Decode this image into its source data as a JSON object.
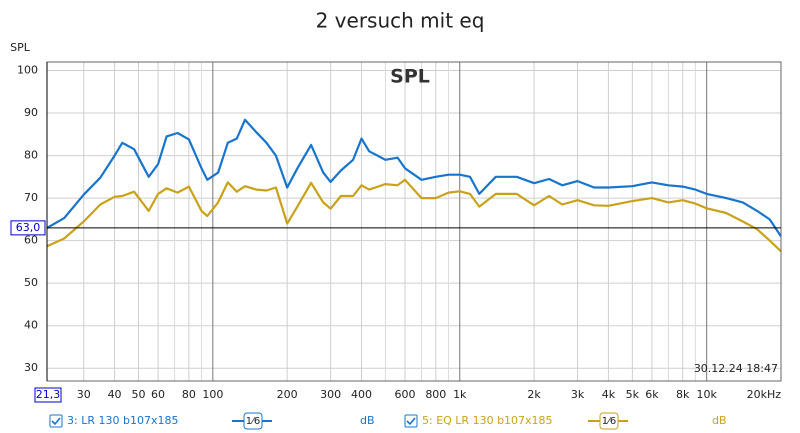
{
  "chart_data": {
    "type": "line",
    "title": "2 versuch mit eq",
    "y_label": "SPL",
    "plot_label": "SPL",
    "timestamp": "30.12.24 18:47",
    "log_x": true,
    "grid": true,
    "xlim": [
      21.3,
      20000
    ],
    "ylim": [
      27,
      102
    ],
    "yticks": [
      30,
      40,
      50,
      60,
      70,
      80,
      90,
      100
    ],
    "xticks": [
      30,
      40,
      50,
      60,
      80,
      100,
      200,
      300,
      400,
      600,
      800,
      {
        "value": 1000,
        "label": "1k"
      },
      {
        "value": 2000,
        "label": "2k"
      },
      {
        "value": 3000,
        "label": "3k"
      },
      {
        "value": 4000,
        "label": "4k"
      },
      {
        "value": 5000,
        "label": "5k"
      },
      {
        "value": 6000,
        "label": "6k"
      },
      {
        "value": 8000,
        "label": "8k"
      },
      {
        "value": 10000,
        "label": "10k"
      },
      {
        "value": 20000,
        "label": "20kHz"
      }
    ],
    "xminor": [
      70,
      90,
      500,
      700,
      900,
      7000,
      9000
    ],
    "y_cursor": {
      "value": 63,
      "label": "63,0"
    },
    "x_cursor": {
      "value": 21.3,
      "label": "21,3"
    },
    "x": [
      21.3,
      25,
      30,
      35,
      40,
      43,
      48,
      55,
      60,
      65,
      72,
      80,
      90,
      95,
      105,
      115,
      125,
      135,
      150,
      165,
      180,
      200,
      220,
      250,
      280,
      300,
      330,
      370,
      400,
      430,
      500,
      560,
      600,
      700,
      800,
      900,
      1000,
      1100,
      1200,
      1400,
      1700,
      2000,
      2300,
      2600,
      3000,
      3500,
      4000,
      5000,
      6000,
      7000,
      8000,
      9000,
      10000,
      12000,
      14000,
      16000,
      18000,
      20000
    ],
    "series": [
      {
        "name": "3: LR 130 b107x185",
        "color": "#1874cd",
        "smoothing": "1⁄6",
        "unit": "dB",
        "values": [
          63,
          65.3,
          70.8,
          74.8,
          80,
          83,
          81.5,
          75,
          78,
          84.5,
          85.3,
          83.8,
          77,
          74.3,
          76,
          83,
          84,
          88.4,
          85.5,
          83,
          80,
          72.5,
          77,
          82.5,
          76,
          73.8,
          76.5,
          79,
          84,
          81,
          79,
          79.5,
          77,
          74.3,
          75,
          75.5,
          75.5,
          75,
          71,
          75,
          75,
          73.5,
          74.5,
          73,
          74,
          72.5,
          72.5,
          72.8,
          73.7,
          73,
          72.7,
          72,
          71,
          70,
          69,
          67,
          65,
          61
        ]
      },
      {
        "name": "5: EQ LR 130 b107x185",
        "color": "#c9a21a",
        "smoothing": "1⁄6",
        "unit": "dB",
        "values": [
          58.7,
          60.5,
          64.5,
          68.5,
          70.3,
          70.5,
          71.5,
          67,
          71,
          72.3,
          71.3,
          72.7,
          67,
          65.8,
          69,
          73.7,
          71.5,
          72.8,
          72,
          71.8,
          72.5,
          64,
          68,
          73.6,
          69,
          67.5,
          70.5,
          70.5,
          73,
          72,
          73.3,
          73,
          74.3,
          70,
          70,
          71.3,
          71.6,
          71,
          68,
          71,
          71,
          68.3,
          70.5,
          68.5,
          69.5,
          68.3,
          68.2,
          69.3,
          70,
          69,
          69.5,
          68.7,
          67.6,
          66.5,
          64.5,
          62.7,
          60,
          57.5
        ]
      }
    ]
  }
}
